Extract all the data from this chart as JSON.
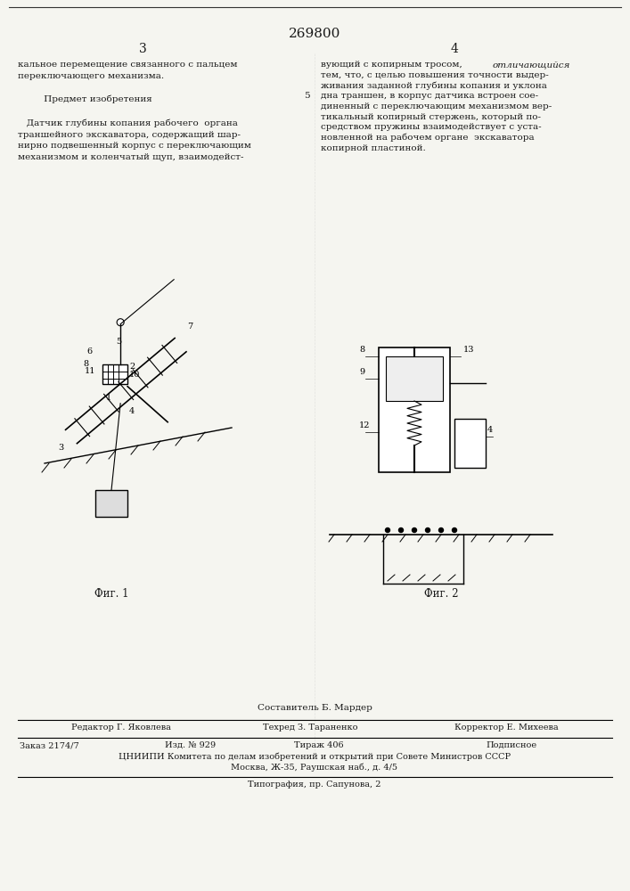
{
  "patent_number": "269800",
  "page_left": "3",
  "page_right": "4",
  "title_section": "Предмет изобретения",
  "text_left": "кальное перемещение связанного с пальцем\nпереключающего механизма.\n\n        Предмет изобретения\n\n   Датчик глубины копания рабочего органа\nтраншейного экскаватора, содержащий шар-\nнирно подвешенный корпус с переключающим\nмеханизмом и коленчатый щуп, взаимодейст-",
  "text_right": "вующий с копирным тросом, отличающийся\nтем, что, с целью повышения точности выдер-\nживания заданной глубины копания и уклона\nдна траншен, в корпус датчика встроен сое-\nдиненный с переключающим механизмом вер-\nтикальный копирный стержень, который по-\nсредством пружины взаимодействует с уста-\nновленной на рабочем органе  экскаватора\nкопирной пластиной.",
  "fig1_caption": "Фиг. 1",
  "fig2_caption": "Фиг. 2",
  "footer_compiler": "Составитель Б. Мардер",
  "footer_editor": "Редактор Г. Яковлева",
  "footer_tech": "Техред З. Тараненко",
  "footer_corrector": "Корректор Е. Михеева",
  "footer_order": "Заказ 2174/7",
  "footer_izd": "Изд. № 929",
  "footer_tirazh": "Тираж 406",
  "footer_podpis": "Подписное",
  "footer_tsniipi": "ЦНИИПИ Комитета по делам изобретений и открытий при Совете Министров СССР",
  "footer_moscow": "Москва, Ж-35, Раушская наб., д. 4/5",
  "footer_tipografia": "Типография, пр. Сапунова, 2",
  "bg_color": "#f5f5f0",
  "text_color": "#1a1a1a"
}
